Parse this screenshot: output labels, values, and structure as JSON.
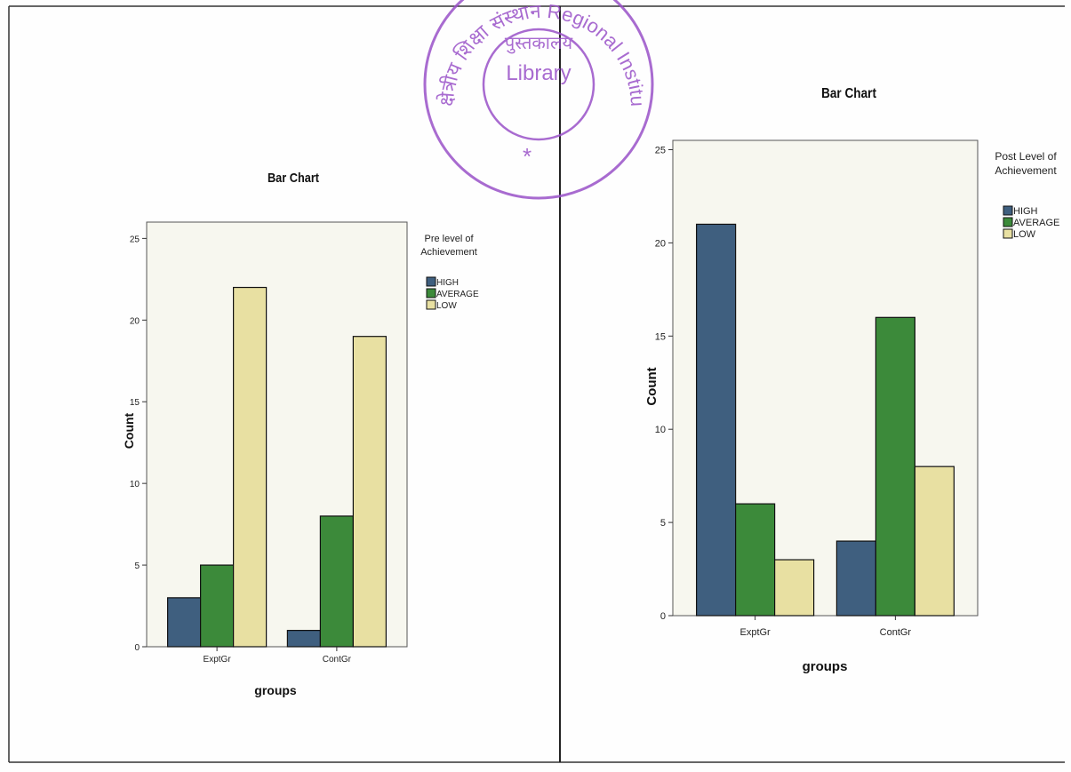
{
  "stamp": {
    "text_outer": "क्षेत्रीय शिक्षा संस्थान Regional Institute of Education, Bhopal मध्य प्रदेश",
    "text_inner_hindi": "पुस्तकालय",
    "text_inner": "Library",
    "star": "*",
    "color": "#9a52c8"
  },
  "colors": {
    "high": "#3f5f7f",
    "average": "#3c8a3a",
    "low": "#e8e0a2",
    "plot_bg": "#f7f7ef",
    "frame": "#222222"
  },
  "chart_data": [
    {
      "type": "bar",
      "title": "Bar Chart",
      "xlabel": "groups",
      "ylabel": "Count",
      "categories": [
        "ExptGr",
        "ContGr"
      ],
      "ylim": [
        0,
        26
      ],
      "yticks": [
        0,
        5,
        10,
        15,
        20,
        25
      ],
      "legend_title": [
        "Pre level of",
        "Achievement"
      ],
      "legend_position": "top-right outside plot",
      "grid": false,
      "series": [
        {
          "name": "HIGH",
          "values": [
            3,
            1
          ]
        },
        {
          "name": "AVERAGE",
          "values": [
            5,
            8
          ]
        },
        {
          "name": "LOW",
          "values": [
            22,
            19
          ]
        }
      ]
    },
    {
      "type": "bar",
      "title": "Bar Chart",
      "xlabel": "groups",
      "ylabel": "Count",
      "categories": [
        "ExptGr",
        "ContGr"
      ],
      "ylim": [
        0,
        25.5
      ],
      "yticks": [
        0,
        5,
        10,
        15,
        20,
        25
      ],
      "legend_title": [
        "Post Level of",
        "Achievement"
      ],
      "legend_position": "top-right outside plot",
      "grid": false,
      "series": [
        {
          "name": "HIGH",
          "values": [
            21,
            4
          ]
        },
        {
          "name": "AVERAGE",
          "values": [
            6,
            16
          ]
        },
        {
          "name": "LOW",
          "values": [
            3,
            8
          ]
        }
      ]
    }
  ]
}
